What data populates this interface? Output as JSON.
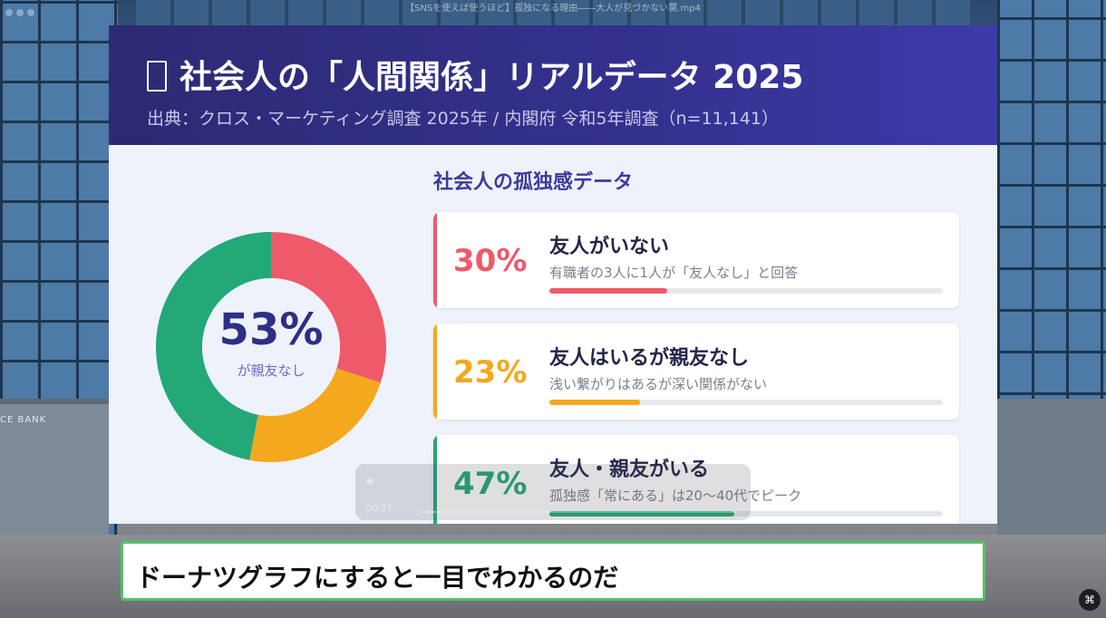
{
  "window": {
    "file_title": "【SNSを使えば使うほど】孤独になる理由――大人が見づかない罠.mp4"
  },
  "background": {
    "building_sign": "CE BANK"
  },
  "slide": {
    "title_icon": "notebook-icon",
    "title": "社会人の「人間関係」リアルデータ 2025",
    "source": "出典：クロス・マーケティング調査 2025年 / 内閣府 令和5年調査（n=11,141）",
    "section_title": "社会人の孤独感データ",
    "donut": {
      "center_value": "53%",
      "center_label": "が親友なし"
    },
    "cards": [
      {
        "percent": "30%",
        "label": "友人がいない",
        "sub": "有職者の3人に1人が「友人なし」と回答",
        "color": "#ef5a6a",
        "value": 30
      },
      {
        "percent": "23%",
        "label": "友人はいるが親友なし",
        "sub": "浅い繋がりはあるが深い関係がない",
        "color": "#f4a81d",
        "value": 23
      },
      {
        "percent": "47%",
        "label": "友人・親友がいる",
        "sub": "孤独感「常にある」は20〜40代でピーク",
        "color": "#23a878",
        "value": 47
      }
    ]
  },
  "chart_data": {
    "type": "pie",
    "categories": [
      "友人がいない",
      "友人はいるが親友なし",
      "友人・親友がいる"
    ],
    "values": [
      30,
      23,
      47
    ],
    "colors": [
      "#ef5a6a",
      "#f4a81d",
      "#23a878"
    ],
    "title": "",
    "legend": "none"
  },
  "player": {
    "time": "00:27",
    "volume_icon": "speaker-icon"
  },
  "subtitle": {
    "text": "ドーナツグラフにすると一目でわかるのだ"
  },
  "corner_button_icon": "caption-icon"
}
